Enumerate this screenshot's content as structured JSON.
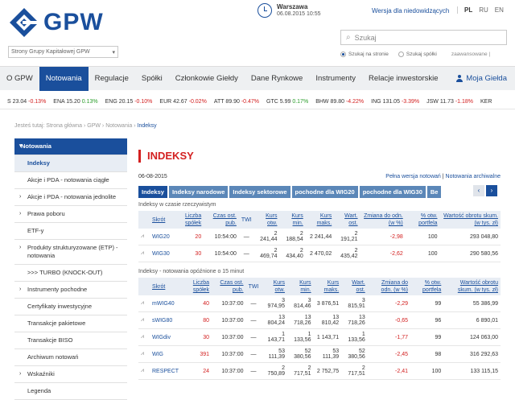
{
  "header": {
    "logo_text": "GPW",
    "site_select": "Strony Grupy Kapitałowej GPW",
    "clock_city": "Warszawa",
    "clock_datetime": "06.08.2015    10:55",
    "hearing_link": "Wersja dla niedowidzących",
    "languages": [
      "PL",
      "RU",
      "EN"
    ],
    "search_placeholder": "Szukaj",
    "radio_site": "Szukaj na stronie",
    "radio_companies": "Szukaj spółki",
    "advanced": "zaawansowane |"
  },
  "nav": {
    "items": [
      "O GPW",
      "Notowania",
      "Regulacje",
      "Spółki",
      "Członkowie Giełdy",
      "Dane Rynkowe",
      "Instrumenty",
      "Relacje inwestorskie"
    ],
    "active_index": 1,
    "user": "Moja Giełda"
  },
  "ticker": [
    {
      "sym": "S",
      "val": "23.04",
      "chg": "-0.13%",
      "dir": "neg"
    },
    {
      "sym": "ENA",
      "val": "15.20",
      "chg": "0.13%",
      "dir": "pos"
    },
    {
      "sym": "ENG",
      "val": "20.15",
      "chg": "-0.10%",
      "dir": "neg"
    },
    {
      "sym": "EUR",
      "val": "42.67",
      "chg": "-0.02%",
      "dir": "neg"
    },
    {
      "sym": "ATT",
      "val": "89.90",
      "chg": "-0.47%",
      "dir": "neg"
    },
    {
      "sym": "GTC",
      "val": "5.99",
      "chg": "0.17%",
      "dir": "pos"
    },
    {
      "sym": "BHW",
      "val": "89.80",
      "chg": "-4.22%",
      "dir": "neg"
    },
    {
      "sym": "ING",
      "val": "131.05",
      "chg": "-3.39%",
      "dir": "neg"
    },
    {
      "sym": "JSW",
      "val": "11.73",
      "chg": "-1.18%",
      "dir": "neg"
    },
    {
      "sym": "KER",
      "val": "",
      "chg": "",
      "dir": "neg"
    }
  ],
  "breadcrumb": {
    "prefix": "Jesteś tutaj: Strona główna › GPW › Notowania › ",
    "current": "Indeksy"
  },
  "sidebar": [
    {
      "label": "Notowania",
      "type": "head",
      "arrow": "▾"
    },
    {
      "label": "Indeksy",
      "type": "sel",
      "arrow": ""
    },
    {
      "label": "Akcje i PDA - notowania ciągłe",
      "type": "item",
      "arrow": ""
    },
    {
      "label": "Akcje i PDA - notowania jednolite",
      "type": "item",
      "arrow": "›"
    },
    {
      "label": "Prawa poboru",
      "type": "item",
      "arrow": "›"
    },
    {
      "label": "ETF-y",
      "type": "item",
      "arrow": ""
    },
    {
      "label": "Produkty strukturyzowane (ETP) - notowania",
      "type": "item",
      "arrow": "›"
    },
    {
      "label": ">>> TURBO (KNOCK-OUT)",
      "type": "item",
      "arrow": ""
    },
    {
      "label": "Instrumenty pochodne",
      "type": "item",
      "arrow": "›"
    },
    {
      "label": "Certyfikaty inwestycyjne",
      "type": "item",
      "arrow": ""
    },
    {
      "label": "Transakcje pakietowe",
      "type": "item",
      "arrow": ""
    },
    {
      "label": "Transakcje BISO",
      "type": "item",
      "arrow": ""
    },
    {
      "label": "Archiwum notowań",
      "type": "item",
      "arrow": ""
    },
    {
      "label": "Wskaźniki",
      "type": "item",
      "arrow": "›"
    },
    {
      "label": "Legenda",
      "type": "item",
      "arrow": ""
    }
  ],
  "main": {
    "title": "INDEKSY",
    "date": "06-08-2015",
    "link_full": "Pełna wersja notowań",
    "link_sep": " | ",
    "link_archive": "Notowania archiwalne",
    "tabs": [
      "Indeksy",
      "Indeksy narodowe",
      "Indeksy sektorowe",
      "pochodne dla WIG20",
      "pochodne dla WIG30",
      "Be"
    ],
    "section1_label": "Indeksy w czasie rzeczywistym",
    "table1_headers": [
      "Skrót",
      "Liczba spółek",
      "Czas ost. pub.",
      "TWI",
      "Kurs otw.",
      "Kurs min.",
      "Kurs maks.",
      "Wart. ost.",
      "Zmiana do odn. (w %)",
      "% otw. portfela",
      "Wartość obrotu skum. (w tys. zł)"
    ],
    "table1_rows": [
      [
        "WIG20",
        "20",
        "10:54:00",
        "—",
        "2 241,44",
        "2 188,54",
        "2 241,44",
        "2 191,21",
        "-2,98",
        "100",
        "293 048,80"
      ],
      [
        "WIG30",
        "30",
        "10:54:00",
        "—",
        "2 469,74",
        "2 434,40",
        "2 470,02",
        "2 435,42",
        "-2,62",
        "100",
        "290 580,56"
      ]
    ],
    "section2_label": "Indeksy - notowania opóźnione o 15 minut",
    "table2_headers": [
      "Skrót",
      "Liczba spółek",
      "Czas ost. pub.",
      "TWI",
      "Kurs otw.",
      "Kurs min.",
      "Kurs maks.",
      "Wart. ost.",
      "Zmiana do odn. (w %)",
      "% otw. portfela",
      "Wartość obrotu skum. (w tys. zł)"
    ],
    "table2_rows": [
      [
        "mWIG40",
        "40",
        "10:37:00",
        "—",
        "3 974,95",
        "3 814,46",
        "3 876,51",
        "3 815,91",
        "-2,29",
        "99",
        "55 386,99"
      ],
      [
        "sWIG80",
        "80",
        "10:37:00",
        "—",
        "13 804,24",
        "13 718,26",
        "13 810,42",
        "13 718,26",
        "-0,65",
        "96",
        "6 890,01"
      ],
      [
        "WIGdiv",
        "30",
        "10:37:00",
        "—",
        "1 143,71",
        "1 133,56",
        "1 143,71",
        "1 133,56",
        "-1,77",
        "99",
        "124 063,00"
      ],
      [
        "WIG",
        "391",
        "10:37:00",
        "—",
        "53 111,39",
        "52 380,56",
        "53 111,39",
        "52 380,56",
        "-2,45",
        "98",
        "316 292,63"
      ],
      [
        "RESPECT",
        "24",
        "10:37:00",
        "—",
        "2 750,89",
        "2 717,51",
        "2 752,75",
        "2 717,51",
        "-2,41",
        "100",
        "133 115,15"
      ]
    ]
  }
}
